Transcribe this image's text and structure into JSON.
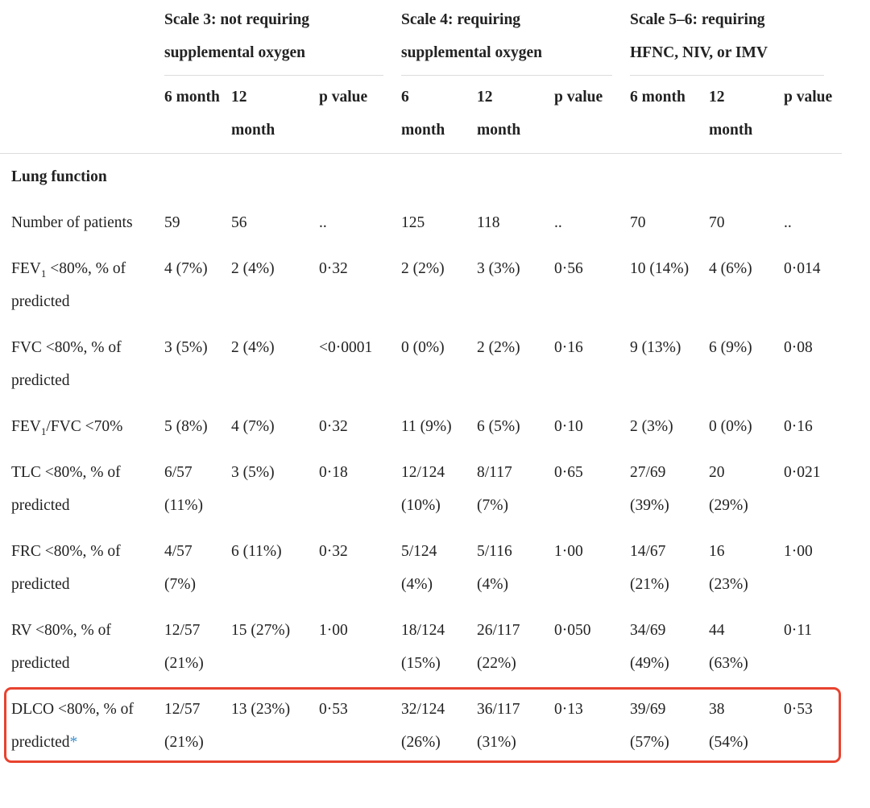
{
  "table": {
    "group_headers": [
      "Scale 3: not requiring supplemental oxygen",
      "Scale 4: requiring supplemental oxygen",
      "Scale 5–6: requiring HFNC, NIV, or IMV"
    ],
    "sub_headers": [
      "6 month",
      "12 month",
      "p value",
      "6 month",
      "12 month",
      "p value",
      "6 month",
      "12 month",
      "p value"
    ],
    "section": "Lung function",
    "rows": [
      {
        "label": [
          "Number of patients"
        ],
        "cells": [
          "59",
          "56",
          "..",
          "125",
          "118",
          "..",
          "70",
          "70",
          ".."
        ]
      },
      {
        "label": [
          "FEV",
          "1",
          " <80%, % of predicted"
        ],
        "cells": [
          "4 (7%)",
          "2 (4%)",
          "0·32",
          "2 (2%)",
          "3 (3%)",
          "0·56",
          "10 (14%)",
          "4 (6%)",
          "0·014"
        ]
      },
      {
        "label": [
          "FVC <80%, % of predicted"
        ],
        "cells": [
          "3 (5%)",
          "2 (4%)",
          "<0·0001",
          "0 (0%)",
          "2 (2%)",
          "0·16",
          "9 (13%)",
          "6 (9%)",
          "0·08"
        ]
      },
      {
        "label": [
          "FEV",
          "1",
          "/FVC <70%"
        ],
        "cells": [
          "5 (8%)",
          "4 (7%)",
          "0·32",
          "11 (9%)",
          "6 (5%)",
          "0·10",
          "2 (3%)",
          "0 (0%)",
          "0·16"
        ]
      },
      {
        "label": [
          "TLC <80%, % of predicted"
        ],
        "cells": [
          "6/57 (11%)",
          "3 (5%)",
          "0·18",
          "12/124 (10%)",
          "8/117 (7%)",
          "0·65",
          "27/69 (39%)",
          "20 (29%)",
          "0·021"
        ]
      },
      {
        "label": [
          "FRC <80%, % of predicted"
        ],
        "cells": [
          "4/57 (7%)",
          "6 (11%)",
          "0·32",
          "5/124 (4%)",
          "5/116 (4%)",
          "1·00",
          "14/67 (21%)",
          "16 (23%)",
          "1·00"
        ]
      },
      {
        "label": [
          "RV <80%, % of predicted"
        ],
        "cells": [
          "12/57 (21%)",
          "15 (27%)",
          "1·00",
          "18/124 (15%)",
          "26/117 (22%)",
          "0·050",
          "34/69 (49%)",
          "44 (63%)",
          "0·11"
        ]
      },
      {
        "label": [
          "DLCO <80%, % of predicted"
        ],
        "footnote": "*",
        "cells": [
          "12/57 (21%)",
          "13 (23%)",
          "0·53",
          "32/124 (26%)",
          "36/117 (31%)",
          "0·13",
          "39/69 (57%)",
          "38 (54%)",
          "0·53"
        ]
      }
    ]
  }
}
